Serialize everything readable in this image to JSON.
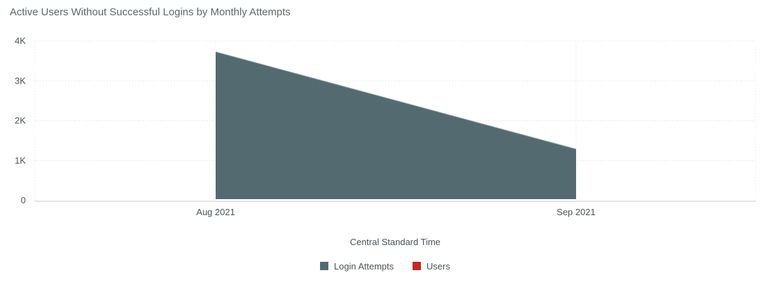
{
  "chart_data": {
    "type": "area",
    "title": "Active Users Without Successful Logins by Monthly Attempts",
    "categories": [
      "Aug 2021",
      "Sep 2021"
    ],
    "series": [
      {
        "name": "Login Attempts",
        "values": [
          3730,
          1290
        ],
        "color": "#536a70"
      },
      {
        "name": "Users",
        "values": [
          null,
          null
        ],
        "color": "#c62828"
      }
    ],
    "xlabel": "Central Standard Time",
    "ylabel": "",
    "ylim": [
      0,
      4000
    ],
    "yticks": [
      0,
      1000,
      2000,
      3000,
      4000
    ],
    "ytick_labels": [
      "0",
      "1K",
      "2K",
      "3K",
      "4K"
    ],
    "grid": true,
    "legend_position": "bottom-center"
  }
}
